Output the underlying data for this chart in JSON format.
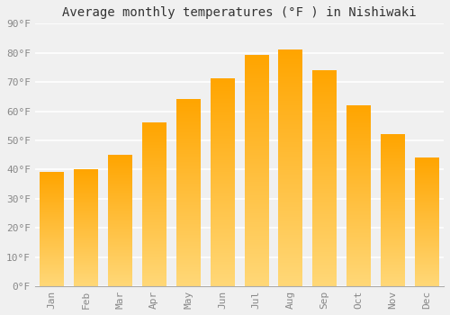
{
  "title": "Average monthly temperatures (°F ) in Nishiwaki",
  "months": [
    "Jan",
    "Feb",
    "Mar",
    "Apr",
    "May",
    "Jun",
    "Jul",
    "Aug",
    "Sep",
    "Oct",
    "Nov",
    "Dec"
  ],
  "values": [
    39,
    40,
    45,
    56,
    64,
    71,
    79,
    81,
    74,
    62,
    52,
    44
  ],
  "bar_color_top": "#FFA500",
  "bar_color_bottom": "#FFD878",
  "ylim": [
    0,
    90
  ],
  "yticks": [
    0,
    10,
    20,
    30,
    40,
    50,
    60,
    70,
    80,
    90
  ],
  "ytick_labels": [
    "0°F",
    "10°F",
    "20°F",
    "30°F",
    "40°F",
    "50°F",
    "60°F",
    "70°F",
    "80°F",
    "90°F"
  ],
  "background_color": "#f0f0f0",
  "grid_color": "#ffffff",
  "title_fontsize": 10,
  "tick_fontsize": 8,
  "bar_width": 0.7
}
